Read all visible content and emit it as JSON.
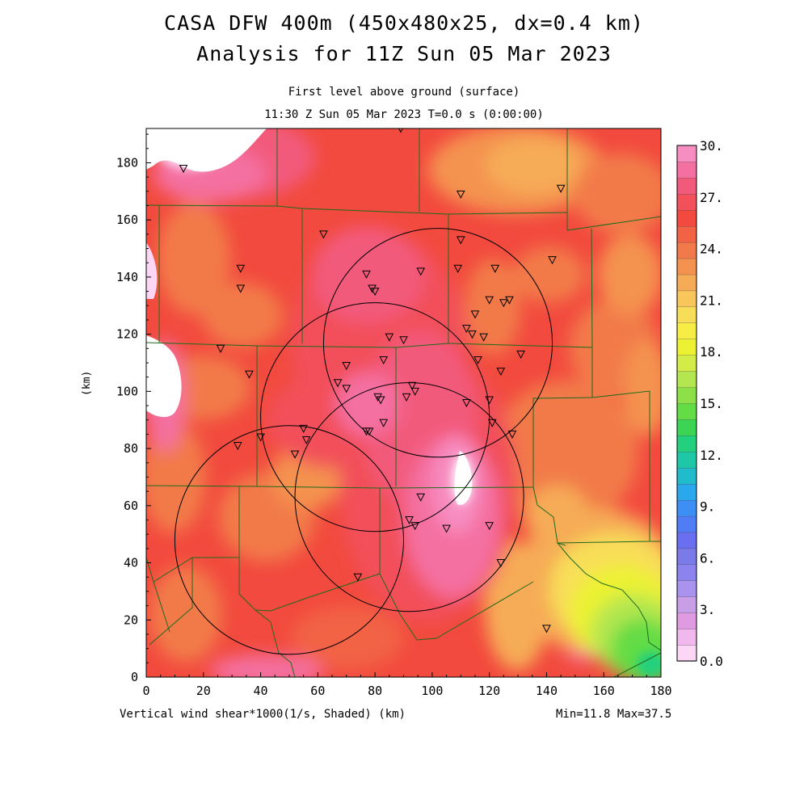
{
  "header": {
    "title_line1": "CASA DFW 400m (450x480x25, dx=0.4 km)",
    "title_line2": "Analysis for 11Z Sun 05 Mar 2023",
    "subtitle_line1": "First level above ground (surface)",
    "subtitle_line2": "11:30 Z Sun 05 Mar 2023    T=0.0 s (0:00:00)"
  },
  "axes": {
    "x_ticks": [
      "0",
      "20",
      "40",
      "60",
      "80",
      "100",
      "120",
      "140",
      "160",
      "180"
    ],
    "y_ticks": [
      "0",
      "20",
      "40",
      "60",
      "80",
      "100",
      "120",
      "140",
      "160",
      "180"
    ],
    "y_label": "(km)",
    "x_range_km": [
      0,
      180
    ],
    "y_range_km": [
      0,
      192
    ]
  },
  "footer": {
    "field_label": "Vertical wind shear*1000(1/s, Shaded)  (km)",
    "min_max": "Min=11.8 Max=37.5"
  },
  "colorbar": {
    "labels": [
      "0.0",
      "3.",
      "6.",
      "9.",
      "12.",
      "15.",
      "18.",
      "21.",
      "24.",
      "27.",
      "30."
    ],
    "colors": [
      "#fcd7f5",
      "#f0b8ec",
      "#e09ae2",
      "#c89fe6",
      "#a993ef",
      "#8c83ee",
      "#7a7ae8",
      "#6a6ef0",
      "#507cf5",
      "#3d8ff5",
      "#2aa8ee",
      "#21bccc",
      "#1ec8a6",
      "#22d07e",
      "#3cd455",
      "#64dc45",
      "#8ee048",
      "#b4e650",
      "#d4ec48",
      "#ecf232",
      "#f6ee44",
      "#f8de58",
      "#f8c65a",
      "#f6ac56",
      "#f49250",
      "#f27a4a",
      "#f26244",
      "#f24a3e",
      "#f2505a",
      "#f25a7c",
      "#f470a0",
      "#f78ec2"
    ]
  },
  "radars": {
    "circles": [
      {
        "cx_km": 102,
        "cy_km": 117,
        "r_km": 40
      },
      {
        "cx_km": 80,
        "cy_km": 91,
        "r_km": 40
      },
      {
        "cx_km": 92,
        "cy_km": 63,
        "r_km": 40
      },
      {
        "cx_km": 50,
        "cy_km": 48,
        "r_km": 40
      }
    ]
  },
  "stations": [
    [
      13,
      178
    ],
    [
      33,
      143
    ],
    [
      33,
      136
    ],
    [
      26,
      115
    ],
    [
      36,
      106
    ],
    [
      62,
      155
    ],
    [
      77,
      141
    ],
    [
      79,
      136
    ],
    [
      80,
      135
    ],
    [
      96,
      142
    ],
    [
      89,
      192
    ],
    [
      110,
      169
    ],
    [
      145,
      171
    ],
    [
      110,
      153
    ],
    [
      109,
      143
    ],
    [
      122,
      143
    ],
    [
      142,
      146
    ],
    [
      115,
      127
    ],
    [
      120,
      132
    ],
    [
      125,
      131
    ],
    [
      127,
      132
    ],
    [
      112,
      122
    ],
    [
      114,
      120
    ],
    [
      118,
      119
    ],
    [
      85,
      119
    ],
    [
      90,
      118
    ],
    [
      83,
      111
    ],
    [
      116,
      111
    ],
    [
      131,
      113
    ],
    [
      124,
      107
    ],
    [
      70,
      109
    ],
    [
      67,
      103
    ],
    [
      70,
      101
    ],
    [
      81,
      98
    ],
    [
      82,
      97
    ],
    [
      91,
      98
    ],
    [
      93,
      102
    ],
    [
      94,
      100
    ],
    [
      112,
      96
    ],
    [
      120,
      97
    ],
    [
      121,
      89
    ],
    [
      128,
      85
    ],
    [
      83,
      89
    ],
    [
      78,
      86
    ],
    [
      77,
      86
    ],
    [
      55,
      87
    ],
    [
      56,
      83
    ],
    [
      40,
      84
    ],
    [
      32,
      81
    ],
    [
      52,
      78
    ],
    [
      96,
      63
    ],
    [
      92,
      55
    ],
    [
      94,
      53
    ],
    [
      105,
      52
    ],
    [
      120,
      53
    ],
    [
      124,
      40
    ],
    [
      74,
      35
    ],
    [
      140,
      17
    ]
  ]
}
